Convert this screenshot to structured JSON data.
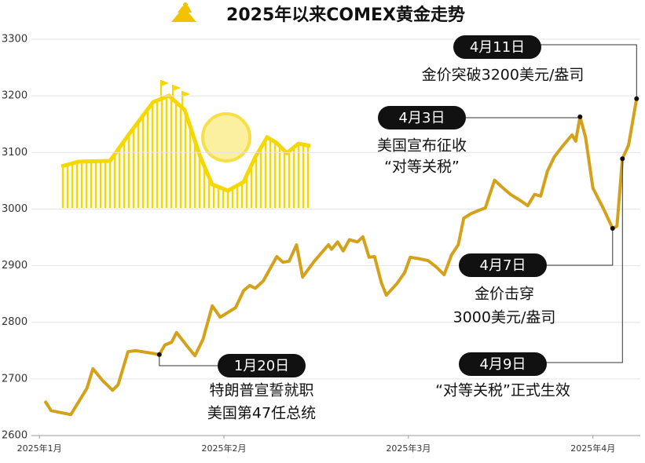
{
  "chart_data": {
    "type": "line",
    "title": "2025年以来COMEX黄金走势",
    "x": [
      0.9,
      1.9,
      5.1,
      6.4,
      7.7,
      8.7,
      10.2,
      11.9,
      12.8,
      14.4,
      15.6,
      18.5,
      19.5,
      20.4,
      21.5,
      22.3,
      24,
      25.3,
      26.6,
      28.1,
      29.4,
      31.9,
      33.2,
      34.2,
      35.1,
      36.4,
      38.6,
      39.6,
      40.6,
      41.8,
      42.8,
      44.7,
      47,
      47.5,
      48.5,
      49.4,
      50.4,
      51.7,
      52.6,
      53.6,
      54.5,
      55.6,
      56.4,
      58.1,
      59.4,
      60.3,
      61.9,
      63.2,
      64.5,
      65.8,
      67,
      68.1,
      69,
      70.2,
      71.5,
      72.5,
      74,
      75.4,
      76.6,
      78.5,
      79.4,
      80.5,
      81.5,
      82.6,
      83.7,
      84.9,
      86.6,
      87.2,
      87.9,
      88.8,
      90,
      91.7,
      93.2,
      93.9,
      94.8,
      95.8,
      97.1
    ],
    "series": [
      {
        "name": "COMEX黄金",
        "color": "#d4a21a",
        "values": [
          2661,
          2644,
          2637,
          2660,
          2683,
          2718,
          2698,
          2680,
          2690,
          2748,
          2750,
          2745,
          2743,
          2760,
          2765,
          2782,
          2758,
          2741,
          2770,
          2829,
          2809,
          2826,
          2856,
          2865,
          2860,
          2873,
          2916,
          2906,
          2908,
          2937,
          2880,
          2908,
          2937,
          2929,
          2942,
          2926,
          2946,
          2942,
          2951,
          2915,
          2916,
          2870,
          2848,
          2868,
          2888,
          2915,
          2912,
          2909,
          2898,
          2884,
          2919,
          2937,
          2984,
          2992,
          2998,
          3002,
          3051,
          3037,
          3026,
          3013,
          3006,
          3026,
          3023,
          3067,
          3092,
          3109,
          3131,
          3120,
          3163,
          3127,
          3037,
          3001,
          2966,
          2970,
          3089,
          3113,
          3195
        ]
      }
    ],
    "xlim": [
      -1.3,
      97.7
    ],
    "xticks": [
      {
        "value": 0,
        "label": "2025年1月"
      },
      {
        "value": 30,
        "label": "2025年2月"
      },
      {
        "value": 60,
        "label": "2025年3月"
      },
      {
        "value": 90,
        "label": "2025年4月"
      }
    ],
    "ylim": [
      2600,
      3300
    ],
    "yticks": [
      2600,
      2700,
      2800,
      2900,
      3000,
      3100,
      3200,
      3300
    ],
    "grid": true,
    "annotations": [
      {
        "date": "1月20日",
        "lines": [
          "特朗普宣誓就职",
          "美国第47任总统"
        ]
      },
      {
        "date": "4月3日",
        "lines": [
          "美国宣布征收",
          "“对等关税”"
        ]
      },
      {
        "date": "4月7日",
        "lines": [
          "金价击穿",
          "3000美元/盎司"
        ]
      },
      {
        "date": "4月9日",
        "lines": [
          "“对等关税”正式生效"
        ]
      },
      {
        "date": "4月11日",
        "lines": [
          "金价突破3200美元/盎司"
        ]
      }
    ]
  }
}
